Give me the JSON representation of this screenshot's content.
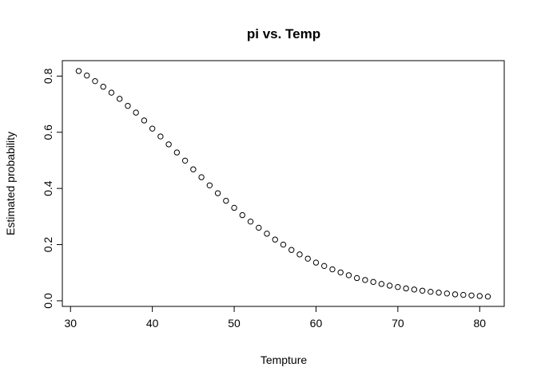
{
  "chart_data": {
    "type": "scatter",
    "title": "pi vs. Temp",
    "xlabel": "Tempture",
    "ylabel": "Estimated probability",
    "xlim": [
      29,
      83
    ],
    "ylim": [
      -0.02,
      0.855
    ],
    "xticks": [
      30,
      40,
      50,
      60,
      70,
      80
    ],
    "yticks": [
      0.0,
      0.2,
      0.4,
      0.6,
      0.8
    ],
    "xtick_labels": [
      "30",
      "40",
      "50",
      "60",
      "70",
      "80"
    ],
    "ytick_labels": [
      "0.0",
      "0.2",
      "0.4",
      "0.6",
      "0.8"
    ],
    "grid": false,
    "legend": "none",
    "point_style": "open-circle",
    "x": [
      31,
      32,
      33,
      34,
      35,
      36,
      37,
      38,
      39,
      40,
      41,
      42,
      43,
      44,
      45,
      46,
      47,
      48,
      49,
      50,
      51,
      52,
      53,
      54,
      55,
      56,
      57,
      58,
      59,
      60,
      61,
      62,
      63,
      64,
      65,
      66,
      67,
      68,
      69,
      70,
      71,
      72,
      73,
      74,
      75,
      76,
      77,
      78,
      79,
      80,
      81
    ],
    "y": [
      0.818,
      0.802,
      0.782,
      0.762,
      0.741,
      0.719,
      0.694,
      0.67,
      0.642,
      0.613,
      0.585,
      0.557,
      0.528,
      0.499,
      0.468,
      0.44,
      0.411,
      0.383,
      0.356,
      0.331,
      0.305,
      0.282,
      0.26,
      0.239,
      0.218,
      0.2,
      0.181,
      0.165,
      0.15,
      0.136,
      0.124,
      0.112,
      0.101,
      0.091,
      0.081,
      0.074,
      0.067,
      0.06,
      0.054,
      0.049,
      0.044,
      0.04,
      0.036,
      0.032,
      0.029,
      0.026,
      0.023,
      0.021,
      0.019,
      0.017,
      0.015
    ]
  }
}
